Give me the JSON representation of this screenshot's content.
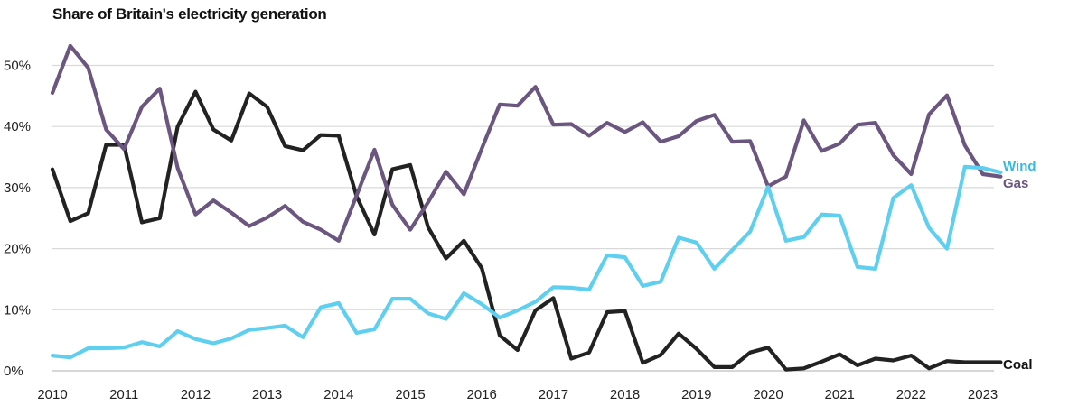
{
  "chart_data": {
    "type": "line",
    "title": "Share of Britain's electricity generation",
    "xlabel": "",
    "ylabel": "",
    "x_ticks": [
      "2010",
      "2011",
      "2012",
      "2013",
      "2014",
      "2015",
      "2016",
      "2017",
      "2018",
      "2019",
      "2020",
      "2021",
      "2022",
      "2023"
    ],
    "y_ticks": [
      "0%",
      "10%",
      "20%",
      "30%",
      "40%",
      "50%"
    ],
    "ylim": [
      0,
      50
    ],
    "xlim": [
      "2010 Q1",
      "2023 Q2"
    ],
    "grid": true,
    "series_labels_position": "right-end",
    "series": [
      {
        "name": "Coal",
        "color": "#222222",
        "x": [
          "2010 Q1",
          "2010 Q2",
          "2010 Q3",
          "2010 Q4",
          "2011 Q1",
          "2011 Q2",
          "2011 Q3",
          "2011 Q4",
          "2012 Q1",
          "2012 Q2",
          "2012 Q3",
          "2012 Q4",
          "2013 Q1",
          "2013 Q2",
          "2013 Q3",
          "2013 Q4",
          "2014 Q1",
          "2014 Q2",
          "2014 Q3",
          "2014 Q4",
          "2015 Q1",
          "2015 Q2",
          "2015 Q3",
          "2015 Q4",
          "2016 Q1",
          "2016 Q2",
          "2016 Q3",
          "2016 Q4",
          "2017 Q1",
          "2017 Q2",
          "2017 Q3",
          "2017 Q4",
          "2018 Q1",
          "2018 Q2",
          "2018 Q3",
          "2018 Q4",
          "2019 Q1",
          "2019 Q2",
          "2019 Q3",
          "2019 Q4",
          "2020 Q1",
          "2020 Q2",
          "2020 Q3",
          "2020 Q4",
          "2021 Q1",
          "2021 Q2",
          "2021 Q3",
          "2021 Q4",
          "2022 Q1",
          "2022 Q2",
          "2022 Q3",
          "2022 Q4",
          "2023 Q1",
          "2023 Q2"
        ],
        "values": [
          33,
          24.5,
          25.8,
          37,
          37,
          24.3,
          25,
          40,
          45.7,
          39.5,
          37.7,
          45.4,
          43.2,
          36.8,
          36.1,
          38.6,
          38.5,
          28.6,
          22.3,
          33,
          33.7,
          23.5,
          18.4,
          21.3,
          16.8,
          5.8,
          3.4,
          9.9,
          11.9,
          2,
          3,
          9.6,
          9.8,
          1.3,
          2.6,
          6.1,
          3.6,
          0.6,
          0.6,
          3,
          3.8,
          0.2,
          0.4,
          1.5,
          2.7,
          0.9,
          2,
          1.7,
          2.5,
          0.4,
          1.6,
          1.4,
          1.4,
          1.4
        ]
      },
      {
        "name": "Gas",
        "color": "#6b5680",
        "x": [
          "2010 Q1",
          "2010 Q2",
          "2010 Q3",
          "2010 Q4",
          "2011 Q1",
          "2011 Q2",
          "2011 Q3",
          "2011 Q4",
          "2012 Q1",
          "2012 Q2",
          "2012 Q3",
          "2012 Q4",
          "2013 Q1",
          "2013 Q2",
          "2013 Q3",
          "2013 Q4",
          "2014 Q1",
          "2014 Q2",
          "2014 Q3",
          "2014 Q4",
          "2015 Q1",
          "2015 Q2",
          "2015 Q3",
          "2015 Q4",
          "2016 Q1",
          "2016 Q2",
          "2016 Q3",
          "2016 Q4",
          "2017 Q1",
          "2017 Q2",
          "2017 Q3",
          "2017 Q4",
          "2018 Q1",
          "2018 Q2",
          "2018 Q3",
          "2018 Q4",
          "2019 Q1",
          "2019 Q2",
          "2019 Q3",
          "2019 Q4",
          "2020 Q1",
          "2020 Q2",
          "2020 Q3",
          "2020 Q4",
          "2021 Q1",
          "2021 Q2",
          "2021 Q3",
          "2021 Q4",
          "2022 Q1",
          "2022 Q2",
          "2022 Q3",
          "2022 Q4",
          "2023 Q1",
          "2023 Q2"
        ],
        "values": [
          45.5,
          53.2,
          49.6,
          39.5,
          36.3,
          43.2,
          46.2,
          33.2,
          25.6,
          27.9,
          25.9,
          23.7,
          25.1,
          27,
          24.4,
          23.1,
          21.3,
          28.7,
          36.2,
          27.2,
          23.1,
          27.6,
          32.6,
          28.9,
          36.4,
          43.6,
          43.4,
          46.5,
          40.3,
          40.4,
          38.5,
          40.6,
          39.1,
          40.7,
          37.5,
          38.4,
          40.9,
          41.9,
          37.5,
          37.6,
          30.2,
          31.8,
          41,
          36,
          37.2,
          40.3,
          40.6,
          35.3,
          32.2,
          42,
          45.1,
          36.9,
          32.2,
          31.8
        ]
      },
      {
        "name": "Wind",
        "color": "#5ecfee",
        "x": [
          "2010 Q1",
          "2010 Q2",
          "2010 Q3",
          "2010 Q4",
          "2011 Q1",
          "2011 Q2",
          "2011 Q3",
          "2011 Q4",
          "2012 Q1",
          "2012 Q2",
          "2012 Q3",
          "2012 Q4",
          "2013 Q1",
          "2013 Q2",
          "2013 Q3",
          "2013 Q4",
          "2014 Q1",
          "2014 Q2",
          "2014 Q3",
          "2014 Q4",
          "2015 Q1",
          "2015 Q2",
          "2015 Q3",
          "2015 Q4",
          "2016 Q1",
          "2016 Q2",
          "2016 Q3",
          "2016 Q4",
          "2017 Q1",
          "2017 Q2",
          "2017 Q3",
          "2017 Q4",
          "2018 Q1",
          "2018 Q2",
          "2018 Q3",
          "2018 Q4",
          "2019 Q1",
          "2019 Q2",
          "2019 Q3",
          "2019 Q4",
          "2020 Q1",
          "2020 Q2",
          "2020 Q3",
          "2020 Q4",
          "2021 Q1",
          "2021 Q2",
          "2021 Q3",
          "2021 Q4",
          "2022 Q1",
          "2022 Q2",
          "2022 Q3",
          "2022 Q4",
          "2023 Q1",
          "2023 Q2"
        ],
        "values": [
          2.5,
          2.2,
          3.7,
          3.7,
          3.8,
          4.7,
          4,
          6.5,
          5.2,
          4.5,
          5.3,
          6.7,
          7,
          7.4,
          5.5,
          10.4,
          11.1,
          6.2,
          6.8,
          11.8,
          11.8,
          9.4,
          8.5,
          12.7,
          10.9,
          8.7,
          9.9,
          11.3,
          13.7,
          13.6,
          13.3,
          18.9,
          18.6,
          13.9,
          14.6,
          21.8,
          21,
          16.7,
          19.8,
          22.8,
          30.1,
          21.3,
          21.9,
          25.6,
          25.4,
          17,
          16.7,
          28.3,
          30.4,
          23.4,
          20,
          33.4,
          33.2,
          32.5
        ]
      }
    ]
  }
}
